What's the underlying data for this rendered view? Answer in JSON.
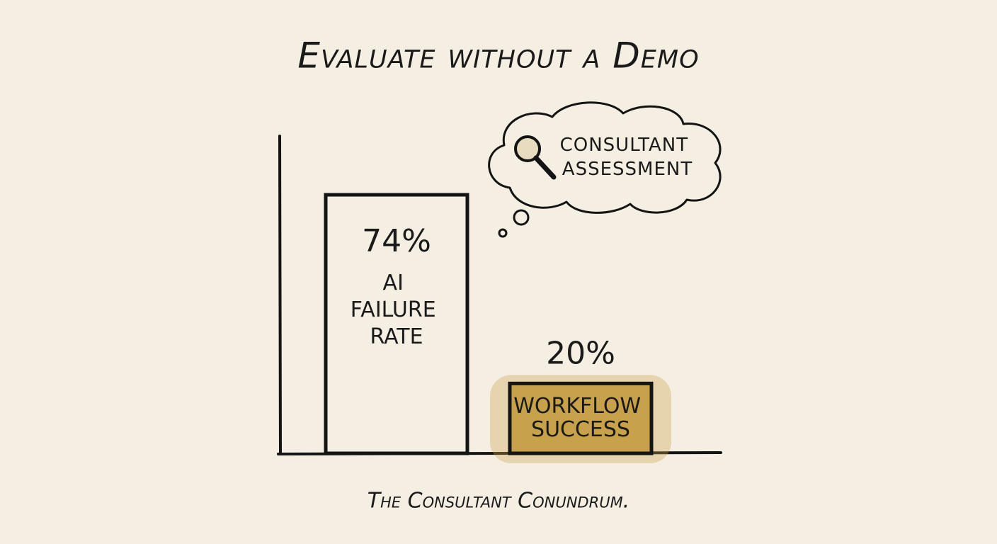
{
  "chart_data": {
    "type": "bar",
    "title": "Evaluate without a Demo",
    "categories": [
      "AI FAILURE RATE",
      "WORKFLOW SUCCESS"
    ],
    "values": [
      74,
      20
    ],
    "value_labels": [
      "74%",
      "20%"
    ],
    "colors": [
      "#f4efe2",
      "#c8a24a"
    ],
    "annotation": "CONSULTANT ASSESSMENT",
    "caption": "The Consultant Conundrum."
  }
}
